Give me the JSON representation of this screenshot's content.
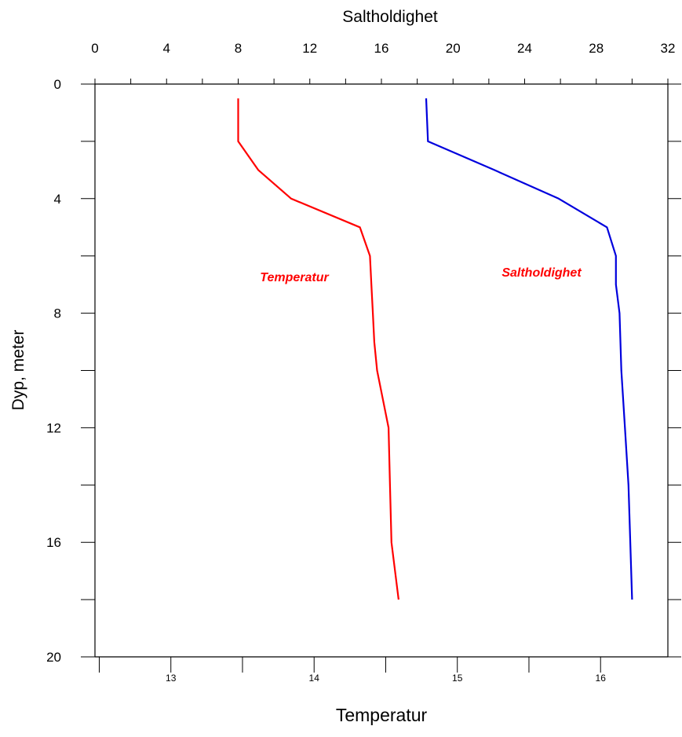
{
  "chart_data": {
    "type": "line",
    "top_axis": {
      "label": "Saltholdighet",
      "range": [
        0,
        32
      ],
      "ticks": [
        "0",
        "4",
        "8",
        "12",
        "16",
        "20",
        "24",
        "28",
        "32"
      ]
    },
    "bottom_axis": {
      "label": "Temperatur",
      "range": [
        12.47,
        16.47
      ],
      "ticks": [
        "13",
        "14",
        "15",
        "16"
      ]
    },
    "left_axis": {
      "label": "Dyp, meter",
      "range": [
        0,
        20
      ],
      "reversed": true,
      "ticks": [
        "0",
        "4",
        "8",
        "12",
        "16",
        "20"
      ]
    },
    "series": [
      {
        "name": "Temperatur",
        "axis": "bottom",
        "color": "#ff0000",
        "points": [
          {
            "x": 13.47,
            "y": 0.5
          },
          {
            "x": 13.47,
            "y": 2
          },
          {
            "x": 13.61,
            "y": 3
          },
          {
            "x": 13.84,
            "y": 4
          },
          {
            "x": 14.32,
            "y": 5
          },
          {
            "x": 14.39,
            "y": 6
          },
          {
            "x": 14.4,
            "y": 7
          },
          {
            "x": 14.41,
            "y": 8
          },
          {
            "x": 14.42,
            "y": 9
          },
          {
            "x": 14.44,
            "y": 10
          },
          {
            "x": 14.52,
            "y": 12
          },
          {
            "x": 14.53,
            "y": 14
          },
          {
            "x": 14.54,
            "y": 16
          },
          {
            "x": 14.59,
            "y": 18
          }
        ]
      },
      {
        "name": "Saltholdighet",
        "axis": "top",
        "color": "#0000dd",
        "points": [
          {
            "x": 18.5,
            "y": 0.5
          },
          {
            "x": 18.6,
            "y": 2
          },
          {
            "x": 22.3,
            "y": 3
          },
          {
            "x": 25.9,
            "y": 4
          },
          {
            "x": 28.6,
            "y": 5
          },
          {
            "x": 29.1,
            "y": 6
          },
          {
            "x": 29.1,
            "y": 7
          },
          {
            "x": 29.3,
            "y": 8
          },
          {
            "x": 29.4,
            "y": 10
          },
          {
            "x": 29.6,
            "y": 12
          },
          {
            "x": 29.8,
            "y": 14
          },
          {
            "x": 29.9,
            "y": 16
          },
          {
            "x": 30.0,
            "y": 18
          }
        ]
      }
    ],
    "annotations": [
      {
        "text": "Temperatur",
        "color": "#ff0000"
      },
      {
        "text": "Saltholdighet",
        "color": "#ff0000"
      }
    ]
  }
}
